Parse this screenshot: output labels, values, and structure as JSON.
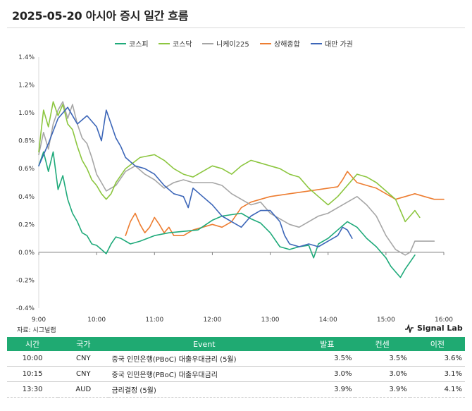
{
  "title": "2025-05-20 아시아 증시 일간 흐름",
  "source": "자료: 시그널랩",
  "brand": "Signal Lab",
  "colors": {
    "kospi": "#1faa7a",
    "kosdaq": "#8cc63f",
    "nikkei": "#a6a6a6",
    "shanghai": "#ed7d31",
    "taiwan": "#3c66b8",
    "table_header": "#1faa72"
  },
  "chart_data": {
    "type": "line",
    "title": "",
    "xlabel": "",
    "ylabel": "",
    "x_ticks": [
      "9:00",
      "10:00",
      "11:00",
      "12:00",
      "13:00",
      "14:00",
      "15:00",
      "16:00"
    ],
    "y_ticks": [
      "1.4%",
      "1.2%",
      "1.0%",
      "0.8%",
      "0.6%",
      "0.4%",
      "0.2%",
      "0.0%",
      "-0.2%",
      "-0.4%"
    ],
    "xlim": [
      "9:00",
      "16:00"
    ],
    "ylim": [
      -0.4,
      1.4
    ],
    "y_unit": "%",
    "legend_position": "top",
    "series": [
      {
        "name": "코스피",
        "key": "kospi",
        "points": [
          [
            "9:00",
            0.62
          ],
          [
            "9:05",
            0.72
          ],
          [
            "9:10",
            0.58
          ],
          [
            "9:15",
            0.72
          ],
          [
            "9:20",
            0.45
          ],
          [
            "9:25",
            0.55
          ],
          [
            "9:30",
            0.38
          ],
          [
            "9:35",
            0.28
          ],
          [
            "9:40",
            0.22
          ],
          [
            "9:45",
            0.14
          ],
          [
            "9:50",
            0.12
          ],
          [
            "9:55",
            0.06
          ],
          [
            "10:00",
            0.05
          ],
          [
            "10:05",
            0.02
          ],
          [
            "10:10",
            -0.01
          ],
          [
            "10:15",
            0.06
          ],
          [
            "10:20",
            0.11
          ],
          [
            "10:25",
            0.1
          ],
          [
            "10:35",
            0.06
          ],
          [
            "10:45",
            0.08
          ],
          [
            "11:00",
            0.12
          ],
          [
            "11:15",
            0.14
          ],
          [
            "11:30",
            0.15
          ],
          [
            "11:45",
            0.16
          ],
          [
            "12:00",
            0.23
          ],
          [
            "12:10",
            0.26
          ],
          [
            "12:20",
            0.27
          ],
          [
            "12:30",
            0.28
          ],
          [
            "12:40",
            0.24
          ],
          [
            "12:50",
            0.21
          ],
          [
            "13:00",
            0.14
          ],
          [
            "13:10",
            0.04
          ],
          [
            "13:20",
            0.02
          ],
          [
            "13:30",
            0.04
          ],
          [
            "13:40",
            0.05
          ],
          [
            "13:45",
            -0.04
          ],
          [
            "13:50",
            0.06
          ],
          [
            "14:00",
            0.1
          ],
          [
            "14:10",
            0.16
          ],
          [
            "14:20",
            0.22
          ],
          [
            "14:30",
            0.18
          ],
          [
            "14:40",
            0.1
          ],
          [
            "14:50",
            0.04
          ],
          [
            "15:00",
            -0.04
          ],
          [
            "15:05",
            -0.1
          ],
          [
            "15:10",
            -0.14
          ],
          [
            "15:15",
            -0.18
          ],
          [
            "15:20",
            -0.12
          ],
          [
            "15:25",
            -0.07
          ],
          [
            "15:30",
            -0.02
          ]
        ]
      },
      {
        "name": "코스닥",
        "key": "kosdaq",
        "points": [
          [
            "9:00",
            0.72
          ],
          [
            "9:05",
            1.02
          ],
          [
            "9:10",
            0.9
          ],
          [
            "9:15",
            1.08
          ],
          [
            "9:20",
            0.98
          ],
          [
            "9:25",
            1.06
          ],
          [
            "9:30",
            0.92
          ],
          [
            "9:35",
            0.88
          ],
          [
            "9:40",
            0.76
          ],
          [
            "9:45",
            0.66
          ],
          [
            "9:50",
            0.6
          ],
          [
            "9:55",
            0.52
          ],
          [
            "10:00",
            0.48
          ],
          [
            "10:05",
            0.42
          ],
          [
            "10:10",
            0.38
          ],
          [
            "10:15",
            0.42
          ],
          [
            "10:20",
            0.5
          ],
          [
            "10:30",
            0.6
          ],
          [
            "10:45",
            0.68
          ],
          [
            "11:00",
            0.7
          ],
          [
            "11:10",
            0.66
          ],
          [
            "11:20",
            0.6
          ],
          [
            "11:30",
            0.56
          ],
          [
            "11:40",
            0.54
          ],
          [
            "11:50",
            0.58
          ],
          [
            "12:00",
            0.62
          ],
          [
            "12:10",
            0.6
          ],
          [
            "12:20",
            0.56
          ],
          [
            "12:30",
            0.62
          ],
          [
            "12:40",
            0.66
          ],
          [
            "12:50",
            0.64
          ],
          [
            "13:00",
            0.62
          ],
          [
            "13:10",
            0.6
          ],
          [
            "13:20",
            0.56
          ],
          [
            "13:30",
            0.54
          ],
          [
            "13:40",
            0.46
          ],
          [
            "13:50",
            0.4
          ],
          [
            "14:00",
            0.34
          ],
          [
            "14:10",
            0.4
          ],
          [
            "14:20",
            0.48
          ],
          [
            "14:30",
            0.56
          ],
          [
            "14:40",
            0.54
          ],
          [
            "14:50",
            0.5
          ],
          [
            "15:00",
            0.44
          ],
          [
            "15:10",
            0.38
          ],
          [
            "15:15",
            0.3
          ],
          [
            "15:20",
            0.22
          ],
          [
            "15:25",
            0.26
          ],
          [
            "15:30",
            0.3
          ],
          [
            "15:35",
            0.25
          ]
        ]
      },
      {
        "name": "니케이225",
        "key": "nikkei",
        "points": [
          [
            "9:00",
            0.7
          ],
          [
            "9:05",
            0.86
          ],
          [
            "9:10",
            0.74
          ],
          [
            "9:15",
            0.92
          ],
          [
            "9:20",
            1.02
          ],
          [
            "9:25",
            1.08
          ],
          [
            "9:30",
            0.96
          ],
          [
            "9:35",
            1.06
          ],
          [
            "9:40",
            0.92
          ],
          [
            "9:45",
            0.82
          ],
          [
            "9:50",
            0.78
          ],
          [
            "9:55",
            0.68
          ],
          [
            "10:00",
            0.56
          ],
          [
            "10:05",
            0.5
          ],
          [
            "10:10",
            0.44
          ],
          [
            "10:20",
            0.48
          ],
          [
            "10:30",
            0.58
          ],
          [
            "10:40",
            0.62
          ],
          [
            "10:50",
            0.56
          ],
          [
            "11:00",
            0.52
          ],
          [
            "11:10",
            0.46
          ],
          [
            "11:20",
            0.5
          ],
          [
            "11:30",
            0.52
          ],
          [
            "11:40",
            0.5
          ],
          [
            "11:50",
            0.5
          ],
          [
            "12:00",
            0.5
          ],
          [
            "12:10",
            0.48
          ],
          [
            "12:20",
            0.42
          ],
          [
            "12:30",
            0.38
          ],
          [
            "12:40",
            0.34
          ],
          [
            "12:50",
            0.36
          ],
          [
            "13:00",
            0.28
          ],
          [
            "13:10",
            0.24
          ],
          [
            "13:20",
            0.2
          ],
          [
            "13:30",
            0.18
          ],
          [
            "13:40",
            0.22
          ],
          [
            "13:50",
            0.26
          ],
          [
            "14:00",
            0.28
          ],
          [
            "14:10",
            0.32
          ],
          [
            "14:20",
            0.36
          ],
          [
            "14:30",
            0.4
          ],
          [
            "14:40",
            0.34
          ],
          [
            "14:50",
            0.26
          ],
          [
            "15:00",
            0.12
          ],
          [
            "15:10",
            0.02
          ],
          [
            "15:20",
            -0.02
          ],
          [
            "15:25",
            0.0
          ],
          [
            "15:30",
            0.08
          ],
          [
            "15:40",
            0.08
          ],
          [
            "15:50",
            0.08
          ]
        ]
      },
      {
        "name": "상해종합",
        "key": "shanghai",
        "points": [
          [
            "10:30",
            0.12
          ],
          [
            "10:35",
            0.22
          ],
          [
            "10:40",
            0.28
          ],
          [
            "10:45",
            0.2
          ],
          [
            "10:50",
            0.14
          ],
          [
            "10:55",
            0.18
          ],
          [
            "11:00",
            0.25
          ],
          [
            "11:05",
            0.2
          ],
          [
            "11:10",
            0.14
          ],
          [
            "11:15",
            0.18
          ],
          [
            "11:20",
            0.12
          ],
          [
            "11:30",
            0.12
          ],
          [
            "11:40",
            0.16
          ],
          [
            "11:50",
            0.18
          ],
          [
            "12:00",
            0.2
          ],
          [
            "12:10",
            0.18
          ],
          [
            "12:20",
            0.22
          ],
          [
            "12:30",
            0.32
          ],
          [
            "12:40",
            0.36
          ],
          [
            "12:50",
            0.38
          ],
          [
            "13:00",
            0.4
          ],
          [
            "13:20",
            0.42
          ],
          [
            "13:40",
            0.44
          ],
          [
            "14:00",
            0.46
          ],
          [
            "14:10",
            0.47
          ],
          [
            "14:15",
            0.52
          ],
          [
            "14:20",
            0.58
          ],
          [
            "14:25",
            0.54
          ],
          [
            "14:30",
            0.5
          ],
          [
            "14:40",
            0.48
          ],
          [
            "14:50",
            0.46
          ],
          [
            "15:00",
            0.42
          ],
          [
            "15:10",
            0.38
          ],
          [
            "15:20",
            0.4
          ],
          [
            "15:30",
            0.42
          ],
          [
            "15:40",
            0.4
          ],
          [
            "15:50",
            0.38
          ],
          [
            "16:00",
            0.38
          ]
        ]
      },
      {
        "name": "대만 가권",
        "key": "taiwan",
        "points": [
          [
            "9:00",
            0.62
          ],
          [
            "9:10",
            0.78
          ],
          [
            "9:20",
            0.96
          ],
          [
            "9:30",
            1.04
          ],
          [
            "9:40",
            0.92
          ],
          [
            "9:50",
            0.98
          ],
          [
            "10:00",
            0.9
          ],
          [
            "10:05",
            0.8
          ],
          [
            "10:10",
            1.02
          ],
          [
            "10:15",
            0.92
          ],
          [
            "10:20",
            0.82
          ],
          [
            "10:25",
            0.76
          ],
          [
            "10:30",
            0.68
          ],
          [
            "10:40",
            0.62
          ],
          [
            "10:50",
            0.6
          ],
          [
            "11:00",
            0.56
          ],
          [
            "11:10",
            0.48
          ],
          [
            "11:20",
            0.42
          ],
          [
            "11:30",
            0.4
          ],
          [
            "11:35",
            0.32
          ],
          [
            "11:40",
            0.46
          ],
          [
            "11:50",
            0.4
          ],
          [
            "12:00",
            0.34
          ],
          [
            "12:10",
            0.26
          ],
          [
            "12:20",
            0.22
          ],
          [
            "12:30",
            0.18
          ],
          [
            "12:40",
            0.26
          ],
          [
            "12:50",
            0.3
          ],
          [
            "13:00",
            0.3
          ],
          [
            "13:10",
            0.22
          ],
          [
            "13:15",
            0.12
          ],
          [
            "13:20",
            0.06
          ],
          [
            "13:30",
            0.04
          ],
          [
            "13:40",
            0.06
          ],
          [
            "13:50",
            0.04
          ],
          [
            "14:00",
            0.08
          ],
          [
            "14:10",
            0.12
          ],
          [
            "14:15",
            0.18
          ],
          [
            "14:20",
            0.16
          ],
          [
            "14:25",
            0.1
          ]
        ]
      }
    ]
  },
  "table": {
    "headers": {
      "time": "시간",
      "country": "국가",
      "event": "Event",
      "actual": "발표",
      "consensus": "컨센",
      "previous": "이전"
    },
    "rows": [
      {
        "time": "10:00",
        "country": "CNY",
        "event": "중국 인민은행(PBoC) 대출우대금리 (5월)",
        "actual": "3.5%",
        "consensus": "3.5%",
        "previous": "3.6%"
      },
      {
        "time": "10:15",
        "country": "CNY",
        "event": "중국 인민은행(PBoC) 대출우대금리",
        "actual": "3.0%",
        "consensus": "3.0%",
        "previous": "3.1%"
      },
      {
        "time": "13:30",
        "country": "AUD",
        "event": "금리결정 (5월)",
        "actual": "3.9%",
        "consensus": "3.9%",
        "previous": "4.1%"
      }
    ]
  }
}
